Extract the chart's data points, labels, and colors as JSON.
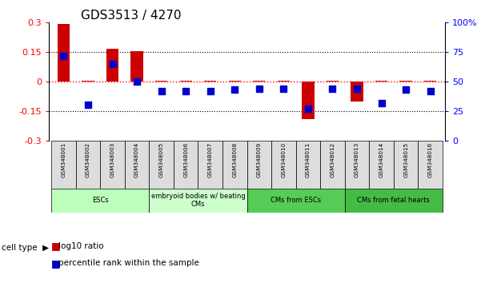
{
  "title": "GDS3513 / 4270",
  "samples": [
    "GSM348001",
    "GSM348002",
    "GSM348003",
    "GSM348004",
    "GSM348005",
    "GSM348006",
    "GSM348007",
    "GSM348008",
    "GSM348009",
    "GSM348010",
    "GSM348011",
    "GSM348012",
    "GSM348013",
    "GSM348014",
    "GSM348015",
    "GSM348016"
  ],
  "log10_ratio": [
    0.295,
    0.005,
    0.165,
    0.155,
    0.005,
    0.005,
    0.005,
    0.003,
    0.003,
    0.003,
    -0.19,
    0.003,
    -0.1,
    0.003,
    0.003,
    0.003
  ],
  "percentile_rank": [
    72,
    30,
    65,
    50,
    42,
    42,
    42,
    43,
    44,
    44,
    27,
    44,
    44,
    32,
    43,
    42
  ],
  "cell_groups": [
    {
      "label": "ESCs",
      "start": 0,
      "end": 3,
      "color": "#bbffbb"
    },
    {
      "label": "embryoid bodies w/ beating\nCMs",
      "start": 4,
      "end": 7,
      "color": "#ccffcc"
    },
    {
      "label": "CMs from ESCs",
      "start": 8,
      "end": 11,
      "color": "#55cc55"
    },
    {
      "label": "CMs from fetal hearts",
      "start": 12,
      "end": 15,
      "color": "#44bb44"
    }
  ],
  "ylim_left": [
    -0.3,
    0.3
  ],
  "ylim_right": [
    0,
    100
  ],
  "yticks_left": [
    -0.3,
    -0.15,
    0.0,
    0.15,
    0.3
  ],
  "ytick_labels_left": [
    "-0.3",
    "-0.15",
    "0",
    "0.15",
    "0.3"
  ],
  "yticks_right": [
    0,
    25,
    50,
    75,
    100
  ],
  "ytick_labels_right": [
    "0",
    "25",
    "50",
    "75",
    "100%"
  ],
  "hlines_dotted": [
    0.15,
    -0.15
  ],
  "bar_color": "#cc0000",
  "dot_color": "#0000cc",
  "legend_red_label": "log10 ratio",
  "legend_blue_label": "percentile rank within the sample",
  "cell_type_label": "cell type"
}
